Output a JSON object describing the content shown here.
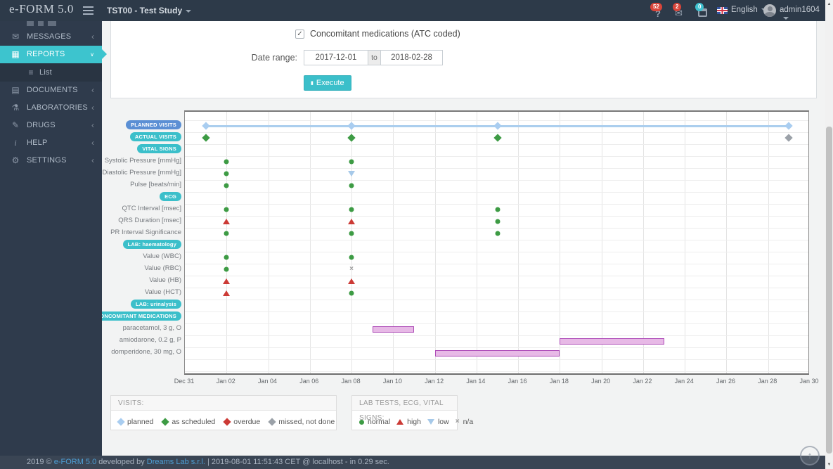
{
  "colors": {
    "accent_teal": "#3dc4ce",
    "pill_teal": "#3bbfca",
    "pill_blue": "#5b8fd4",
    "badge_red": "#d9453a",
    "badge_cyan": "#3fc1d0"
  },
  "icons": {
    "question_mark": "?",
    "envelope": "✉",
    "check": "✓",
    "execute": "▮",
    "list": "≡",
    "report": "▦",
    "document": "▤",
    "flask": "⚗",
    "pencil": "✎",
    "info": "i",
    "gear": "⚙",
    "chevron_left": "‹",
    "chevron_down": "∨",
    "up_arrow": "↑",
    "scroll_up": "▲",
    "scroll_down": "▼"
  },
  "navbar": {
    "logo": "e-FORM 5.0",
    "study_selector": "TST00 - Test Study",
    "help_badge": "52",
    "messages_badge": "2",
    "calendar_badge": "0",
    "language": "English",
    "user": "admin1604"
  },
  "sidebar": {
    "items": [
      {
        "label": "MESSAGES",
        "icon": "envelope"
      },
      {
        "label": "REPORTS",
        "icon": "report",
        "active": true
      },
      {
        "label": "List",
        "icon": "list",
        "sub": true
      },
      {
        "label": "DOCUMENTS",
        "icon": "document"
      },
      {
        "label": "LABORATORIES",
        "icon": "flask"
      },
      {
        "label": "DRUGS",
        "icon": "pencil"
      },
      {
        "label": "HELP",
        "icon": "info"
      },
      {
        "label": "SETTINGS",
        "icon": "gear"
      }
    ]
  },
  "form": {
    "checkbox_label": "Concomitant medications (ATC coded)",
    "checkbox_checked": true,
    "date_range_label": "Date range:",
    "date_from": "2017-12-01",
    "to_word": "to",
    "date_to": "2018-02-28",
    "execute_label": "Execute"
  },
  "chart_data": {
    "type": "timeline-scatter",
    "x_ticks": [
      "Dec 31",
      "Jan 02",
      "Jan 04",
      "Jan 06",
      "Jan 08",
      "Jan 10",
      "Jan 12",
      "Jan 14",
      "Jan 16",
      "Jan 18",
      "Jan 20",
      "Jan 22",
      "Jan 24",
      "Jan 26",
      "Jan 28",
      "Jan 30"
    ],
    "days_span": 30,
    "tick_step_days": 2,
    "grid": true,
    "planned_line": {
      "from": 1,
      "to": 29,
      "color": "#abceee"
    },
    "marker_colors": {
      "planned": "#a9cdf0",
      "as_scheduled": "#3d9b44",
      "overdue": "#cc3a35",
      "missed": "#9ba1a8",
      "normal": "#3d9b44",
      "high": "#cc3a35",
      "low": "#a6c9e9",
      "na": "#9b9b9b"
    },
    "med_bar_colors": {
      "fill": "#e7b9e6",
      "border": "#ae4cb8"
    },
    "rows": [
      {
        "label": "PLANNED VISITS",
        "pill": "blue",
        "markers": [
          {
            "day": 1,
            "status": "planned"
          },
          {
            "day": 8,
            "status": "planned"
          },
          {
            "day": 15,
            "status": "planned"
          },
          {
            "day": 29,
            "status": "planned"
          }
        ]
      },
      {
        "label": "ACTUAL VISITS",
        "pill": "teal",
        "markers": [
          {
            "day": 1,
            "status": "as_scheduled"
          },
          {
            "day": 8,
            "status": "as_scheduled"
          },
          {
            "day": 15,
            "status": "as_scheduled"
          },
          {
            "day": 29,
            "status": "missed"
          }
        ]
      },
      {
        "label": "VITAL SIGNS",
        "pill": "teal",
        "markers": []
      },
      {
        "label": "Systolic Pressure [mmHg]",
        "markers": [
          {
            "day": 2,
            "status": "normal"
          },
          {
            "day": 8,
            "status": "normal"
          }
        ]
      },
      {
        "label": "Diastolic Pressure [mmHg]",
        "markers": [
          {
            "day": 2,
            "status": "normal"
          },
          {
            "day": 8,
            "status": "low"
          }
        ]
      },
      {
        "label": "Pulse [beats/min]",
        "markers": [
          {
            "day": 2,
            "status": "normal"
          },
          {
            "day": 8,
            "status": "normal"
          }
        ]
      },
      {
        "label": "ECG",
        "pill": "teal",
        "markers": []
      },
      {
        "label": "QTC Interval [msec]",
        "markers": [
          {
            "day": 2,
            "status": "normal"
          },
          {
            "day": 8,
            "status": "normal"
          },
          {
            "day": 15,
            "status": "normal"
          }
        ]
      },
      {
        "label": "QRS Duration [msec]",
        "markers": [
          {
            "day": 2,
            "status": "high"
          },
          {
            "day": 8,
            "status": "high"
          },
          {
            "day": 15,
            "status": "normal"
          }
        ]
      },
      {
        "label": "PR Interval Significance",
        "markers": [
          {
            "day": 2,
            "status": "normal"
          },
          {
            "day": 8,
            "status": "normal"
          },
          {
            "day": 15,
            "status": "normal"
          }
        ]
      },
      {
        "label": "LAB: haematology",
        "pill": "teal",
        "markers": []
      },
      {
        "label": "Value (WBC)",
        "markers": [
          {
            "day": 2,
            "status": "normal"
          },
          {
            "day": 8,
            "status": "normal"
          }
        ]
      },
      {
        "label": "Value (RBC)",
        "markers": [
          {
            "day": 2,
            "status": "normal"
          },
          {
            "day": 8,
            "status": "na"
          }
        ]
      },
      {
        "label": "Value (HB)",
        "markers": [
          {
            "day": 2,
            "status": "high"
          },
          {
            "day": 8,
            "status": "high"
          }
        ]
      },
      {
        "label": "Value (HCT)",
        "markers": [
          {
            "day": 2,
            "status": "high"
          },
          {
            "day": 8,
            "status": "normal"
          }
        ]
      },
      {
        "label": "LAB: urinalysis",
        "pill": "teal",
        "markers": []
      },
      {
        "label": "CONCOMITANT MEDICATIONS",
        "pill": "teal",
        "markers": []
      },
      {
        "label": "paracetamol, 3 g, O",
        "bar": {
          "from": 9,
          "to": 11
        }
      },
      {
        "label": "amiodarone, 0.2 g, P",
        "bar": {
          "from": 18,
          "to": 23
        }
      },
      {
        "label": "domperidone, 30 mg, O",
        "bar": {
          "from": 12,
          "to": 18
        }
      }
    ]
  },
  "legends": {
    "visits": {
      "title": "VISITS:",
      "items": [
        {
          "label": "planned",
          "status": "planned"
        },
        {
          "label": "as scheduled",
          "status": "as_scheduled"
        },
        {
          "label": "overdue",
          "status": "overdue"
        },
        {
          "label": "missed, not done",
          "status": "missed"
        }
      ]
    },
    "labs": {
      "title": "LAB TESTS, ECG, VITAL SIGNS:",
      "items": [
        {
          "label": "normal",
          "status": "normal"
        },
        {
          "label": "high",
          "status": "high"
        },
        {
          "label": "low",
          "status": "low"
        },
        {
          "label": "n/a",
          "status": "na"
        }
      ]
    }
  },
  "footer": {
    "prefix": "2019 ©",
    "app_link": "e-FORM 5.0",
    "middle": "developed by",
    "dev_link": "Dreams Lab s.r.l.",
    "rest": "| 2019-08-01 11:51:43 CET @ localhost - in 0.29 sec."
  }
}
